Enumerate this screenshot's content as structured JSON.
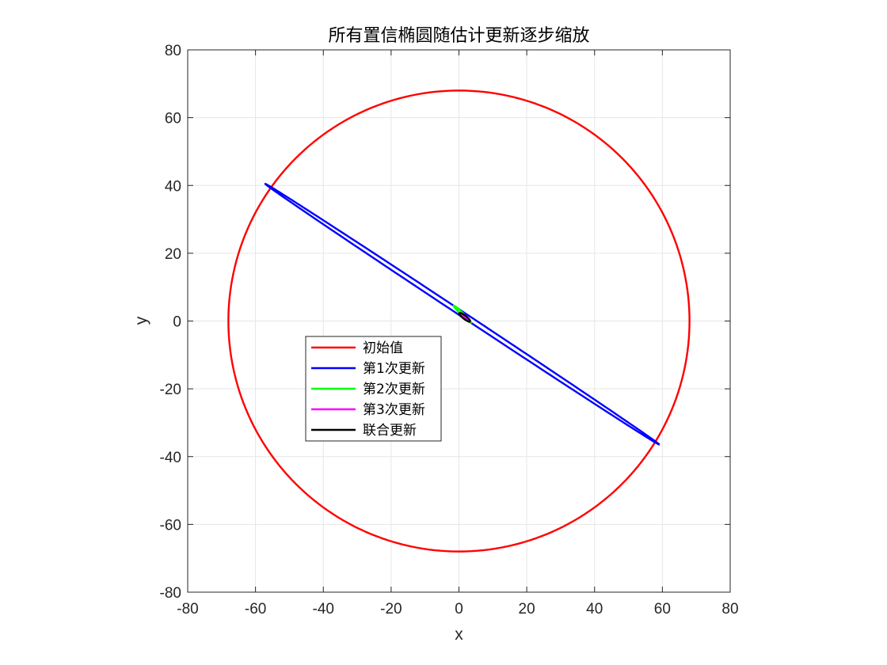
{
  "chart_data": {
    "type": "line",
    "title": "所有置信椭圆随估计更新逐步缩放",
    "xlabel": "x",
    "ylabel": "y",
    "xlim": [
      -80,
      80
    ],
    "ylim": [
      -80,
      80
    ],
    "xticks": [
      -80,
      -60,
      -40,
      -20,
      0,
      20,
      40,
      60,
      80
    ],
    "yticks": [
      -80,
      -60,
      -40,
      -20,
      0,
      20,
      40,
      60,
      80
    ],
    "grid": true,
    "legend_placement": "lower-left inside",
    "series": [
      {
        "name": "初始值",
        "color": "#ff0000",
        "shape": "ellipse",
        "center": [
          0,
          0
        ],
        "semi_major": 68,
        "semi_minor": 68,
        "angle_deg": 0
      },
      {
        "name": "第1次更新",
        "color": "#0000ff",
        "shape": "ellipse",
        "center": [
          1,
          2
        ],
        "semi_major": 69.7,
        "semi_minor": 0.7,
        "angle_deg": -33.5
      },
      {
        "name": "第2次更新",
        "color": "#00ff00",
        "shape": "ellipse",
        "center": [
          1,
          2
        ],
        "semi_major": 3.6,
        "semi_minor": 0.35,
        "angle_deg": -45
      },
      {
        "name": "第3次更新",
        "color": "#ff00ff",
        "shape": "ellipse",
        "center": [
          1.6,
          1.2
        ],
        "semi_major": 1.4,
        "semi_minor": 0.3,
        "angle_deg": -40
      },
      {
        "name": "联合更新",
        "color": "#000000",
        "shape": "ellipse",
        "center": [
          1.7,
          1.1
        ],
        "semi_major": 2.0,
        "semi_minor": 0.5,
        "angle_deg": -38
      }
    ]
  }
}
